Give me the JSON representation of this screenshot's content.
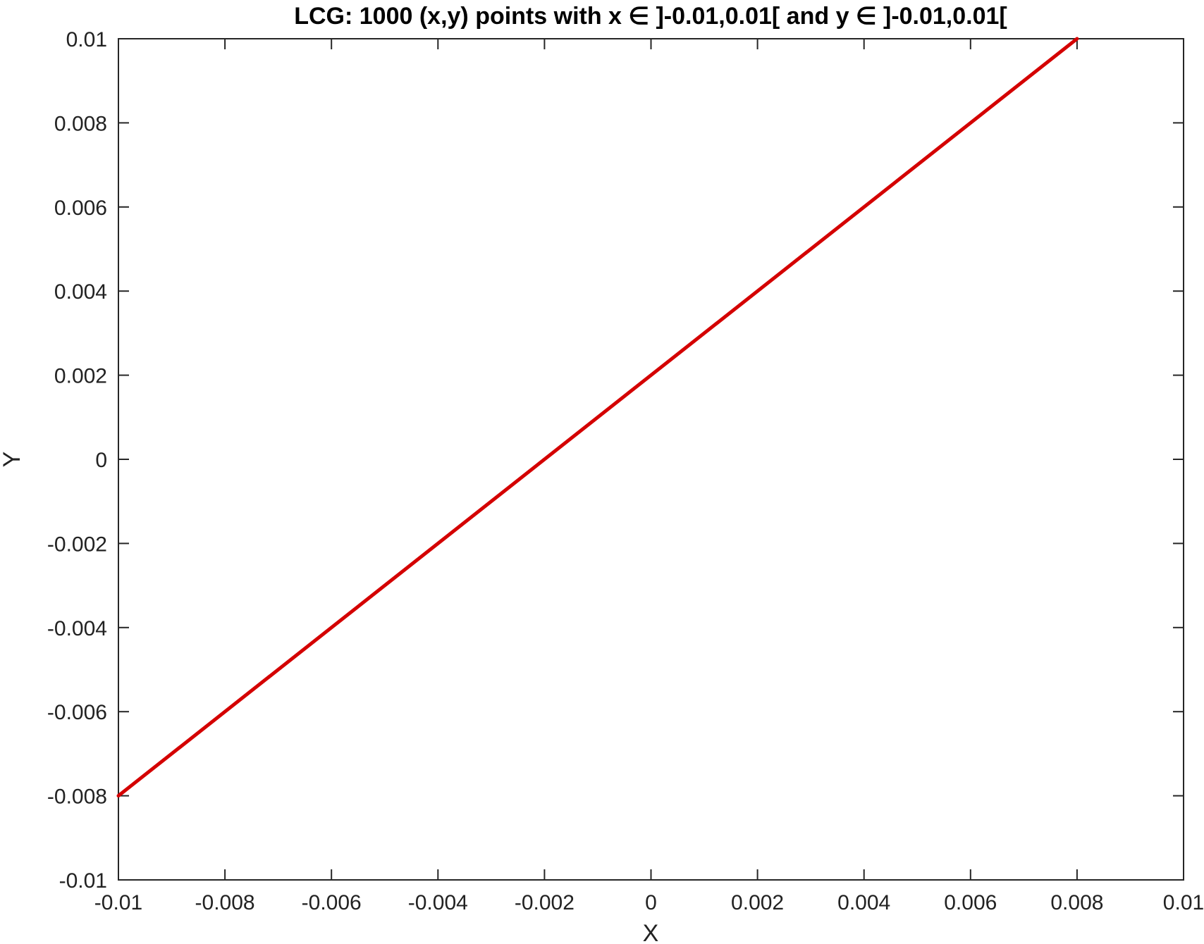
{
  "chart_data": {
    "type": "line",
    "title": "LCG: 1000 (x,y) points with x ∈ ]-0.01,0.01[ and y ∈ ]-0.01,0.01[",
    "xlabel": "X",
    "ylabel": "Y",
    "xlim": [
      -0.01,
      0.01
    ],
    "ylim": [
      -0.01,
      0.01
    ],
    "xticks": [
      -0.01,
      -0.008,
      -0.006,
      -0.004,
      -0.002,
      0,
      0.002,
      0.004,
      0.006,
      0.008,
      0.01
    ],
    "yticks": [
      -0.01,
      -0.008,
      -0.006,
      -0.004,
      -0.002,
      0,
      0.002,
      0.004,
      0.006,
      0.008,
      0.01
    ],
    "xtick_labels": [
      "-0.01",
      "-0.008",
      "-0.006",
      "-0.004",
      "-0.002",
      "0",
      "0.002",
      "0.004",
      "0.006",
      "0.008",
      "0.01"
    ],
    "ytick_labels": [
      "-0.01",
      "-0.008",
      "-0.006",
      "-0.004",
      "-0.002",
      "0",
      "0.002",
      "0.004",
      "0.006",
      "0.008",
      "0.01"
    ],
    "grid": false,
    "series": [
      {
        "color": "#d40000",
        "x": [
          -0.01,
          0.008
        ],
        "y": [
          -0.008,
          0.01
        ]
      }
    ]
  }
}
